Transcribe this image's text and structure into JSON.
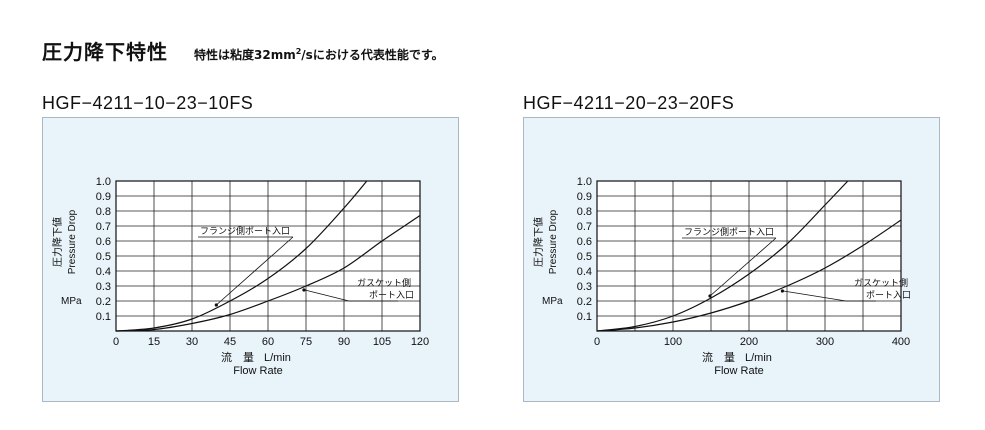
{
  "page": {
    "heading": "圧力降下特性",
    "note_before": "特性は粘度32mm",
    "note_sup": "2",
    "note_after": "/sにおける代表性能です。"
  },
  "chart_data": [
    {
      "type": "line",
      "title": "HGF−4211−10−23−10FS",
      "xlabel_jp": "流　量",
      "xlabel_unit": "L/min",
      "xlabel_en": "Flow Rate",
      "ylabel_jp": "圧力降下値",
      "ylabel_en": "Pressure Drop",
      "ylabel_unit": "MPa",
      "xlim": [
        0,
        120
      ],
      "ylim": [
        0,
        1.0
      ],
      "x_ticks": [
        0,
        15,
        30,
        45,
        60,
        75,
        90,
        105,
        120
      ],
      "x_tick_labels": [
        "0",
        "15",
        "30",
        "45",
        "60",
        "75",
        "90",
        "105",
        "120"
      ],
      "y_ticks": [
        0.1,
        0.2,
        0.3,
        0.4,
        0.5,
        0.6,
        0.7,
        0.8,
        0.9,
        1.0
      ],
      "y_tick_labels": [
        "0.1",
        "0.2",
        "0.3",
        "0.4",
        "0.5",
        "0.6",
        "0.7",
        "0.8",
        "0.9",
        "1.0"
      ],
      "grid": true,
      "series": [
        {
          "name": "フランジ側ポート入口",
          "x": [
            0,
            15,
            30,
            45,
            60,
            75,
            90,
            99
          ],
          "y": [
            0,
            0.02,
            0.08,
            0.2,
            0.35,
            0.55,
            0.82,
            1.0
          ]
        },
        {
          "name_line1": "ガスケット側",
          "name_line2": "ポート入口",
          "x": [
            0,
            15,
            30,
            45,
            60,
            75,
            90,
            105,
            120
          ],
          "y": [
            0,
            0.01,
            0.05,
            0.11,
            0.2,
            0.3,
            0.42,
            0.6,
            0.77
          ]
        }
      ]
    },
    {
      "type": "line",
      "title": "HGF−4211−20−23−20FS",
      "xlabel_jp": "流　量",
      "xlabel_unit": "L/min",
      "xlabel_en": "Flow Rate",
      "ylabel_jp": "圧力降下値",
      "ylabel_en": "Pressure Drop",
      "ylabel_unit": "MPa",
      "xlim": [
        0,
        400
      ],
      "ylim": [
        0,
        1.0
      ],
      "x_ticks": [
        0,
        50,
        100,
        150,
        200,
        250,
        300,
        350,
        400
      ],
      "x_tick_labels": [
        "0",
        "",
        "100",
        "",
        "200",
        "",
        "300",
        "",
        "400"
      ],
      "y_ticks": [
        0.1,
        0.2,
        0.3,
        0.4,
        0.5,
        0.6,
        0.7,
        0.8,
        0.9,
        1.0
      ],
      "y_tick_labels": [
        "0.1",
        "0.2",
        "0.3",
        "0.4",
        "0.5",
        "0.6",
        "0.7",
        "0.8",
        "0.9",
        "1.0"
      ],
      "grid": true,
      "series": [
        {
          "name": "フランジ側ポート入口",
          "x": [
            0,
            50,
            100,
            150,
            200,
            250,
            300,
            330
          ],
          "y": [
            0,
            0.03,
            0.1,
            0.22,
            0.38,
            0.58,
            0.84,
            1.0
          ]
        },
        {
          "name_line1": "ガスケット側",
          "name_line2": "ポート入口",
          "x": [
            0,
            50,
            100,
            150,
            200,
            250,
            300,
            350,
            400
          ],
          "y": [
            0,
            0.02,
            0.06,
            0.12,
            0.2,
            0.3,
            0.42,
            0.57,
            0.74
          ]
        }
      ]
    }
  ]
}
